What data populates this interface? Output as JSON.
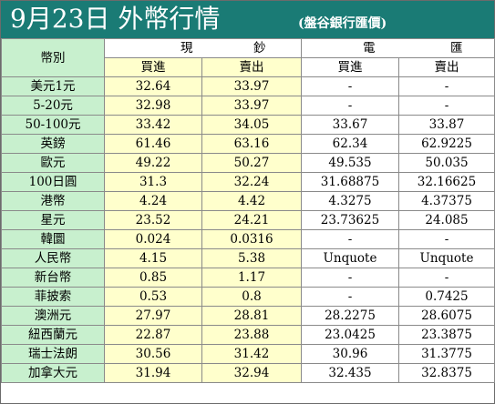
{
  "title": {
    "main": "9月23日 外幣行情",
    "source": "(盤谷銀行匯價)"
  },
  "headers": {
    "currency": "幣別",
    "cash_left": "現",
    "cash_right": "鈔",
    "tt_left": "電",
    "tt_right": "匯",
    "cash_buy": "買進",
    "cash_sell": "賣出",
    "tt_buy": "買進",
    "tt_sell": "賣出"
  },
  "colors": {
    "title_bar": "#1a7b75",
    "currency_column": "#c8f0ce",
    "cash_columns": "#ffffcc",
    "tt_columns": "#ffffff"
  },
  "rows": [
    {
      "currency": "美元1元",
      "cash_buy": "32.64",
      "cash_sell": "33.97",
      "tt_buy": "-",
      "tt_sell": "-"
    },
    {
      "currency": "5-20元",
      "cash_buy": "32.98",
      "cash_sell": "33.97",
      "tt_buy": "-",
      "tt_sell": "-"
    },
    {
      "currency": "50-100元",
      "cash_buy": "33.42",
      "cash_sell": "34.05",
      "tt_buy": "33.67",
      "tt_sell": "33.87"
    },
    {
      "currency": "英鎊",
      "cash_buy": "61.46",
      "cash_sell": "63.16",
      "tt_buy": "62.34",
      "tt_sell": "62.9225"
    },
    {
      "currency": "歐元",
      "cash_buy": "49.22",
      "cash_sell": "50.27",
      "tt_buy": "49.535",
      "tt_sell": "50.035"
    },
    {
      "currency": "100日圓",
      "cash_buy": "31.3",
      "cash_sell": "32.24",
      "tt_buy": "31.68875",
      "tt_sell": "32.16625"
    },
    {
      "currency": "港幣",
      "cash_buy": "4.24",
      "cash_sell": "4.42",
      "tt_buy": "4.3275",
      "tt_sell": "4.37375"
    },
    {
      "currency": "星元",
      "cash_buy": "23.52",
      "cash_sell": "24.21",
      "tt_buy": "23.73625",
      "tt_sell": "24.085"
    },
    {
      "currency": "韓圜",
      "cash_buy": "0.024",
      "cash_sell": "0.0316",
      "tt_buy": "-",
      "tt_sell": "-"
    },
    {
      "currency": "人民幣",
      "cash_buy": "4.15",
      "cash_sell": "5.38",
      "tt_buy": "Unquote",
      "tt_sell": "Unquote"
    },
    {
      "currency": "新台幣",
      "cash_buy": "0.85",
      "cash_sell": "1.17",
      "tt_buy": "-",
      "tt_sell": "-"
    },
    {
      "currency": "菲披索",
      "cash_buy": "0.53",
      "cash_sell": "0.8",
      "tt_buy": "-",
      "tt_sell": "0.7425"
    },
    {
      "currency": "澳洲元",
      "cash_buy": "27.97",
      "cash_sell": "28.81",
      "tt_buy": "28.2275",
      "tt_sell": "28.6075"
    },
    {
      "currency": "紐西蘭元",
      "cash_buy": "22.87",
      "cash_sell": "23.88",
      "tt_buy": "23.0425",
      "tt_sell": "23.3875"
    },
    {
      "currency": "瑞士法朗",
      "cash_buy": "30.56",
      "cash_sell": "31.42",
      "tt_buy": "30.96",
      "tt_sell": "31.3775"
    },
    {
      "currency": "加拿大元",
      "cash_buy": "31.94",
      "cash_sell": "32.94",
      "tt_buy": "32.435",
      "tt_sell": "32.8375"
    }
  ]
}
